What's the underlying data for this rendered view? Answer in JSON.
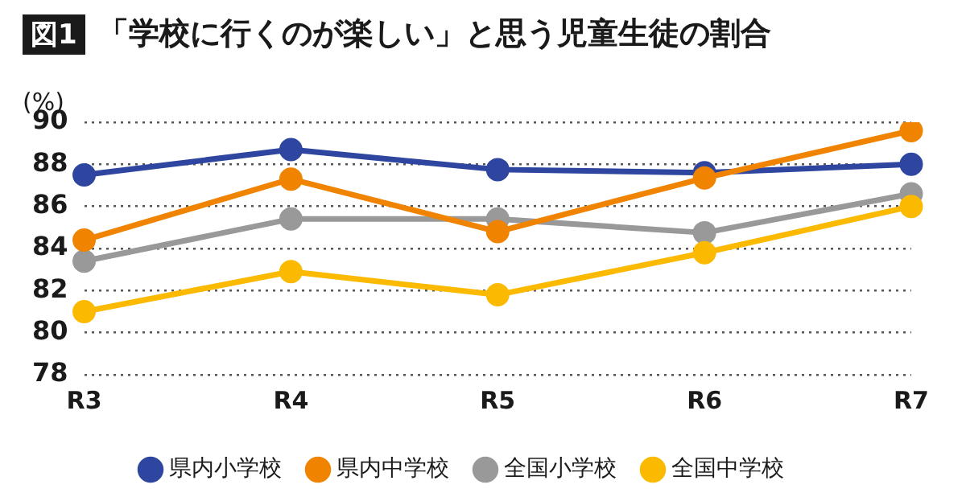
{
  "chart_data": {
    "type": "line",
    "title": "「学校に行くのが楽しい」と思う児童生徒の割合",
    "annotations": [
      "図1"
    ],
    "ylabel": "(%)",
    "categories": [
      "R3",
      "R4",
      "R5",
      "R6",
      "R7"
    ],
    "series": [
      {
        "name": "県内小学校",
        "color": "#2e46a0",
        "values": [
          87.5,
          88.7,
          87.75,
          87.6,
          88.0
        ]
      },
      {
        "name": "県内中学校",
        "color": "#f08300",
        "values": [
          84.4,
          87.3,
          84.8,
          87.35,
          89.6
        ]
      },
      {
        "name": "全国小学校",
        "color": "#999999",
        "values": [
          83.4,
          85.4,
          85.4,
          84.75,
          86.6
        ]
      },
      {
        "name": "全国中学校",
        "color": "#fbb900",
        "values": [
          81.0,
          82.9,
          81.8,
          83.8,
          86.0
        ]
      }
    ],
    "ylim": [
      78,
      90
    ],
    "yticks": [
      78,
      80,
      82,
      84,
      86,
      88,
      90
    ],
    "grid": "y",
    "legend": "bottom",
    "marker": "circle",
    "line_style": "solid"
  }
}
